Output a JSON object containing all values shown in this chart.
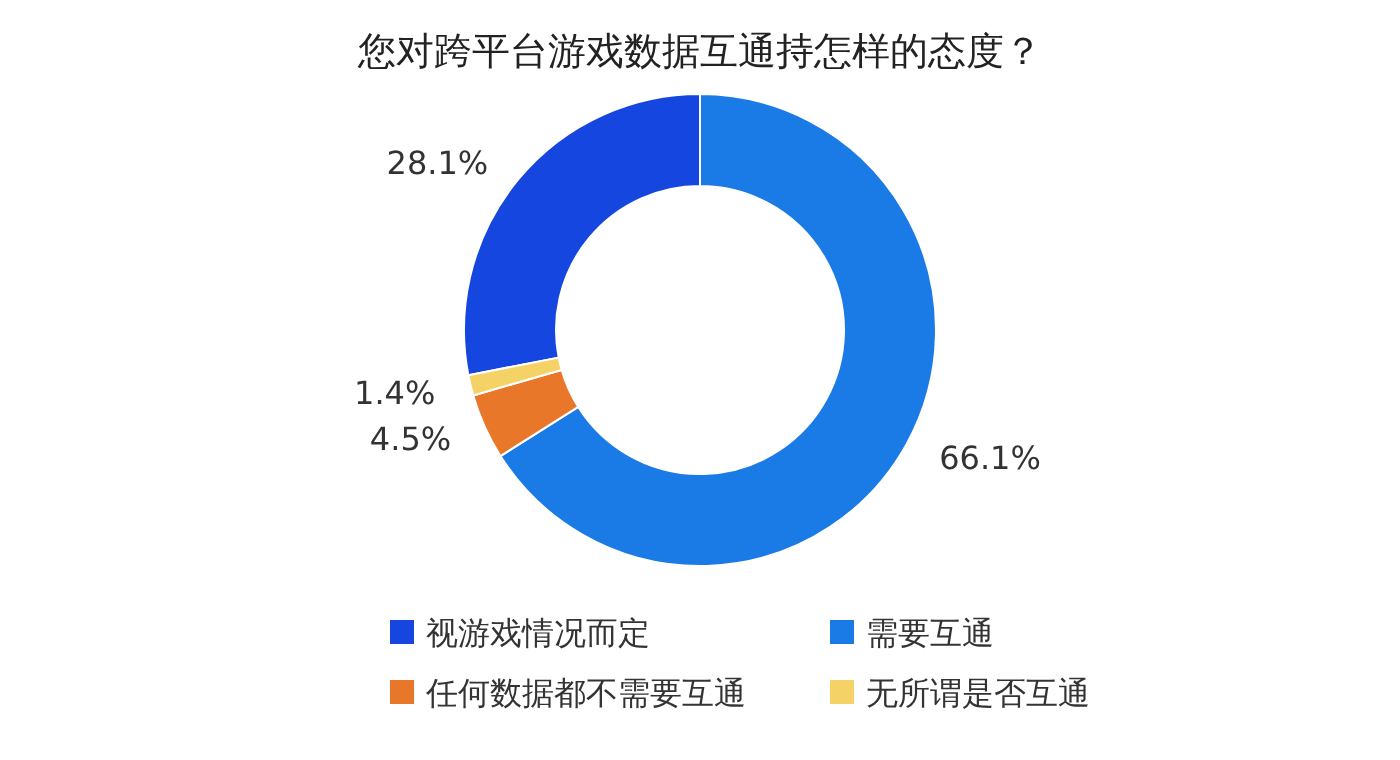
{
  "chart_data": {
    "type": "donut",
    "title": "您对跨平台游戏数据互通持怎样的态度？",
    "categories": [
      "视游戏情况而定",
      "需要互通",
      "任何数据都不需要互通",
      "无所谓是否互通"
    ],
    "values": [
      28.1,
      66.1,
      4.5,
      1.4
    ],
    "value_labels": [
      "28.1%",
      "66.1%",
      "4.5%",
      "1.4%"
    ],
    "colors": [
      "#1646e0",
      "#1a7ae6",
      "#e8772a",
      "#f5d266"
    ],
    "legend": "bottom"
  }
}
